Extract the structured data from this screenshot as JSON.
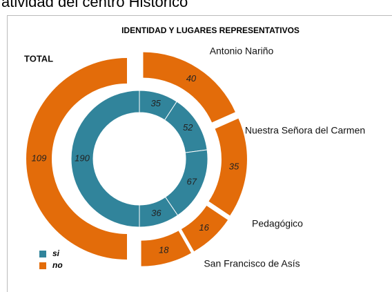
{
  "chart_data": {
    "type": "nested-donut",
    "heading": "atividad del centro Histórico",
    "title": "IDENTIDAD Y LUGARES REPRESENTATIVOS",
    "categories": [
      "Antonio Nariño",
      "Nuestra Señora del Carmen",
      "Pedagógico",
      "San Francisco de Asís",
      "TOTAL"
    ],
    "series": [
      {
        "name": "si",
        "color": "#31849b",
        "values": [
          35,
          52,
          67,
          36,
          190
        ]
      },
      {
        "name": "no",
        "color": "#e36c0a",
        "values": [
          40,
          35,
          16,
          18,
          109
        ]
      }
    ]
  }
}
